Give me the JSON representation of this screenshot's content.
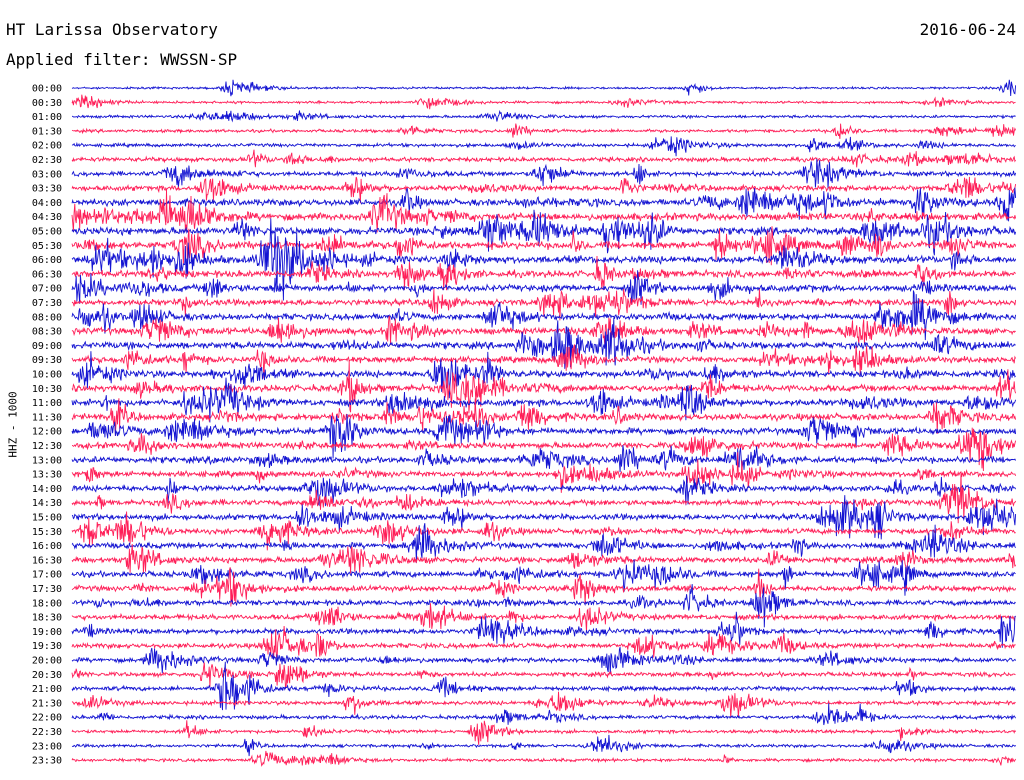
{
  "header": {
    "station": "HT Larissa Observatory",
    "date": "2016-06-24",
    "filter": "Applied filter: WWSSN-SP",
    "channel": "HHZ - 1000"
  },
  "colors": {
    "even": "#1414d2",
    "odd": "#ff1f58",
    "text": "#000000"
  },
  "chart_data": {
    "type": "line",
    "description_kind": "helicorder",
    "rows": [
      "00:00",
      "00:30",
      "01:00",
      "01:30",
      "02:00",
      "02:30",
      "03:00",
      "03:30",
      "04:00",
      "04:30",
      "05:00",
      "05:30",
      "06:00",
      "06:30",
      "07:00",
      "07:30",
      "08:00",
      "08:30",
      "09:00",
      "09:30",
      "10:00",
      "10:30",
      "11:00",
      "11:30",
      "12:00",
      "12:30",
      "13:00",
      "13:30",
      "14:00",
      "14:30",
      "15:00",
      "15:30",
      "16:00",
      "16:30",
      "17:00",
      "17:30",
      "18:00",
      "18:30",
      "19:00",
      "19:30",
      "20:00",
      "20:30",
      "21:00",
      "21:30",
      "22:00",
      "22:30",
      "23:00",
      "23:30"
    ],
    "row_activity": [
      0.15,
      0.2,
      0.25,
      0.3,
      0.35,
      0.5,
      0.55,
      0.7,
      0.9,
      1.0,
      1.0,
      0.95,
      1.0,
      0.9,
      0.85,
      0.8,
      0.85,
      0.85,
      0.9,
      0.85,
      0.85,
      0.9,
      0.9,
      0.9,
      0.85,
      0.8,
      0.8,
      0.75,
      0.75,
      0.7,
      0.75,
      0.7,
      0.75,
      0.75,
      0.75,
      0.7,
      0.65,
      0.65,
      0.65,
      0.6,
      0.55,
      0.5,
      0.5,
      0.45,
      0.4,
      0.35,
      0.3,
      0.3
    ]
  }
}
